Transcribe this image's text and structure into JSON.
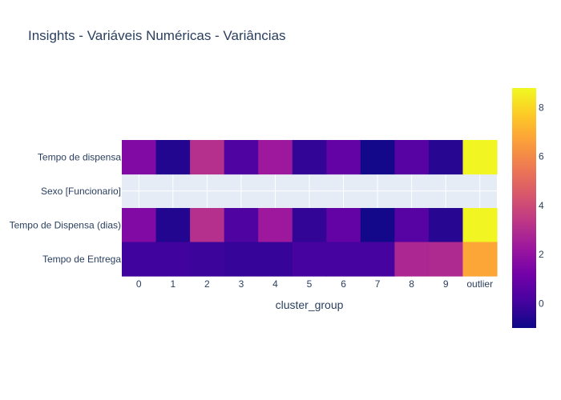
{
  "chart_data": {
    "type": "heatmap",
    "title": "Insights - Variáveis Numéricas - Variâncias",
    "xlabel": "cluster_group",
    "ylabel": "",
    "x": [
      "0",
      "1",
      "2",
      "3",
      "4",
      "5",
      "6",
      "7",
      "8",
      "9",
      "outlier"
    ],
    "y": [
      "Tempo de dispensa",
      "Sexo [Funcionario]",
      "Tempo de Dispensa (dias)",
      "Tempo de Entrega"
    ],
    "z": [
      [
        1.6,
        -0.6,
        3.1,
        0.3,
        2.3,
        -0.3,
        0.8,
        -0.9,
        0.5,
        -0.5,
        8.7
      ],
      [
        null,
        null,
        null,
        null,
        null,
        null,
        null,
        null,
        null,
        null,
        null
      ],
      [
        1.6,
        -0.6,
        3.1,
        0.3,
        2.3,
        -0.3,
        0.8,
        -0.9,
        0.5,
        -0.5,
        8.7
      ],
      [
        0.0,
        0.0,
        -0.1,
        -0.2,
        -0.2,
        0.1,
        0.1,
        0.1,
        2.8,
        2.9,
        6.8
      ]
    ],
    "colorscale": "Plasma",
    "zmin": -1,
    "zmax": 8.8,
    "colorbar_ticks": [
      "0",
      "2",
      "4",
      "6",
      "8"
    ],
    "colorbar_tick_values": [
      0,
      2,
      4,
      6,
      8
    ],
    "empty_cell_color": "#e5ecf6",
    "grid": true
  }
}
